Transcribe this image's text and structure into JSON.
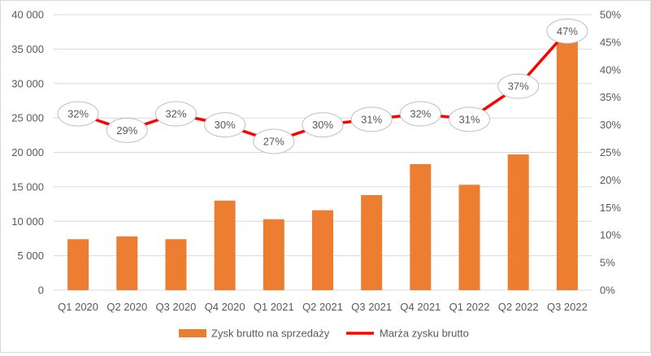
{
  "chart_data": {
    "type": "bar",
    "categories": [
      "Q1 2020",
      "Q2 2020",
      "Q3 2020",
      "Q4 2020",
      "Q1 2021",
      "Q2 2021",
      "Q3 2021",
      "Q4 2021",
      "Q1 2022",
      "Q2 2022",
      "Q3 2022"
    ],
    "series": [
      {
        "name": "Zysk brutto na sprzedaży",
        "type": "bar",
        "axis": "left",
        "color": "#ED7D31",
        "values": [
          7400,
          7800,
          7400,
          13000,
          10300,
          11600,
          13800,
          18300,
          15300,
          19700,
          36300
        ]
      },
      {
        "name": "Marża zysku brutto",
        "type": "line",
        "axis": "right",
        "color": "#FF0000",
        "values": [
          32,
          29,
          32,
          30,
          27,
          30,
          31,
          32,
          31,
          37,
          47
        ],
        "labels": [
          "32%",
          "29%",
          "32%",
          "30%",
          "27%",
          "30%",
          "31%",
          "32%",
          "31%",
          "37%",
          "47%"
        ]
      }
    ],
    "y_left": {
      "min": 0,
      "max": 40000,
      "ticks": [
        0,
        5000,
        10000,
        15000,
        20000,
        25000,
        30000,
        35000,
        40000
      ],
      "tick_labels": [
        "0",
        "5 000",
        "10 000",
        "15 000",
        "20 000",
        "25 000",
        "30 000",
        "35 000",
        "40 000"
      ]
    },
    "y_right": {
      "min": 0,
      "max": 50,
      "ticks": [
        0,
        5,
        10,
        15,
        20,
        25,
        30,
        35,
        40,
        45,
        50
      ],
      "tick_labels": [
        "0%",
        "5%",
        "10%",
        "15%",
        "20%",
        "25%",
        "30%",
        "35%",
        "40%",
        "45%",
        "50%"
      ]
    },
    "grid": true,
    "legend": "bottom",
    "title": "",
    "xlabel": "",
    "ylabel": ""
  }
}
